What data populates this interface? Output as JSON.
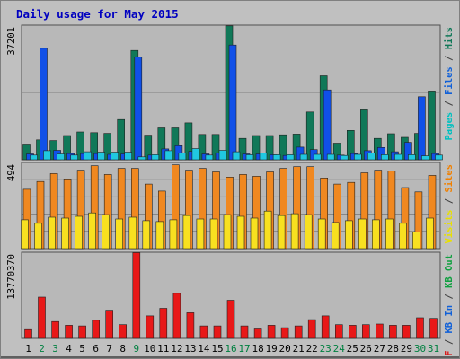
{
  "chart_data": {
    "type": "bar",
    "title": "Daily usage for May 2015",
    "days": [
      "1",
      "2",
      "3",
      "4",
      "5",
      "6",
      "7",
      "8",
      "9",
      "10",
      "11",
      "12",
      "13",
      "14",
      "15",
      "16",
      "17",
      "18",
      "19",
      "20",
      "21",
      "22",
      "23",
      "24",
      "25",
      "26",
      "27",
      "28",
      "29",
      "30",
      "31"
    ],
    "weekend_days": [
      "2",
      "3",
      "9",
      "16",
      "17",
      "23",
      "24",
      "30",
      "31"
    ],
    "panels": [
      {
        "id": "hits",
        "max_label": "37201",
        "ymax": 37201,
        "legend": [
          {
            "text": "Pages",
            "color": "#00c0c0"
          },
          {
            "text": " / ",
            "color": "#404040"
          },
          {
            "text": "Files",
            "color": "#1060d8"
          },
          {
            "text": " / ",
            "color": "#404040"
          },
          {
            "text": "Hits",
            "color": "#107858"
          }
        ],
        "series": [
          {
            "name": "Hits",
            "color": "#107858",
            "values": [
              4100,
              5500,
              5300,
              6700,
              7700,
              7500,
              7300,
              11100,
              30200,
              6800,
              8800,
              8800,
              10200,
              7000,
              7000,
              37000,
              5900,
              6700,
              6700,
              6900,
              7100,
              13200,
              23200,
              4600,
              8100,
              13800,
              5900,
              7200,
              6200,
              7300,
              19000
            ]
          },
          {
            "name": "Files",
            "color": "#1050e8",
            "values": [
              1600,
              30800,
              2600,
              1700,
              1700,
              1700,
              1500,
              1600,
              28400,
              1300,
              3000,
              3900,
              2300,
              1600,
              1900,
              31700,
              1600,
              1600,
              1400,
              1200,
              3500,
              2800,
              19300,
              1300,
              1700,
              2500,
              3400,
              2200,
              4800,
              17400,
              1700
            ]
          },
          {
            "name": "Pages",
            "color": "#20c8e0",
            "values": [
              1300,
              2500,
              1600,
              1300,
              2200,
              2100,
              2100,
              2100,
              800,
              1400,
              2500,
              1800,
              3100,
              1300,
              2600,
              2200,
              1400,
              1900,
              1400,
              1400,
              1500,
              1500,
              1500,
              1200,
              1500,
              1800,
              1400,
              1500,
              1400,
              1100,
              1300
            ]
          }
        ]
      },
      {
        "id": "visits",
        "max_label": "494",
        "ymax": 494,
        "legend": [
          {
            "text": "Visits",
            "color": "#e8e000"
          },
          {
            "text": " / ",
            "color": "#404040"
          },
          {
            "text": "Sites",
            "color": "#f08000"
          }
        ],
        "series": [
          {
            "name": "Sites",
            "color": "#f08820",
            "values": [
              340,
              385,
              430,
              400,
              450,
              475,
              425,
              460,
              460,
              370,
              330,
              480,
              450,
              460,
              440,
              410,
              425,
              415,
              440,
              460,
              470,
              470,
              405,
              370,
              380,
              435,
              450,
              445,
              350,
              325,
              420
            ]
          },
          {
            "name": "Visits",
            "color": "#f8e020",
            "values": [
              165,
              145,
              180,
              175,
              185,
              205,
              195,
              170,
              180,
              160,
              155,
              165,
              190,
              170,
              170,
              195,
              185,
              175,
              215,
              190,
              200,
              195,
              170,
              150,
              160,
              170,
              165,
              170,
              145,
              95,
              175
            ]
          }
        ]
      },
      {
        "id": "kbytes",
        "max_label": "13770370",
        "ymax": 13770370,
        "legend": [
          {
            "text": "KB F",
            "color": "#d81818"
          },
          {
            "text": " / ",
            "color": "#404040"
          },
          {
            "text": "KB In",
            "color": "#1060d8"
          },
          {
            "text": " / ",
            "color": "#404040"
          },
          {
            "text": "KB Out",
            "color": "#10a040"
          }
        ],
        "series": [
          {
            "name": "KB F",
            "color": "#e81818",
            "values": [
              1400000,
              6600000,
              2700000,
              2100000,
              2000000,
              2900000,
              4500000,
              2200000,
              13700000,
              3600000,
              4800000,
              7200000,
              4100000,
              2000000,
              2000000,
              6100000,
              2000000,
              1500000,
              2100000,
              1700000,
              2000000,
              3000000,
              3600000,
              2200000,
              2100000,
              2200000,
              2300000,
              2100000,
              2100000,
              3300000,
              3200000
            ]
          }
        ]
      }
    ]
  },
  "colors": {
    "frame_bg": "#c0c0c0",
    "panel_bg": "#b8b8b8",
    "gridline": "#808080",
    "title": "#0000c0",
    "weekday_label": "#000000",
    "weekend_label": "#008040"
  }
}
